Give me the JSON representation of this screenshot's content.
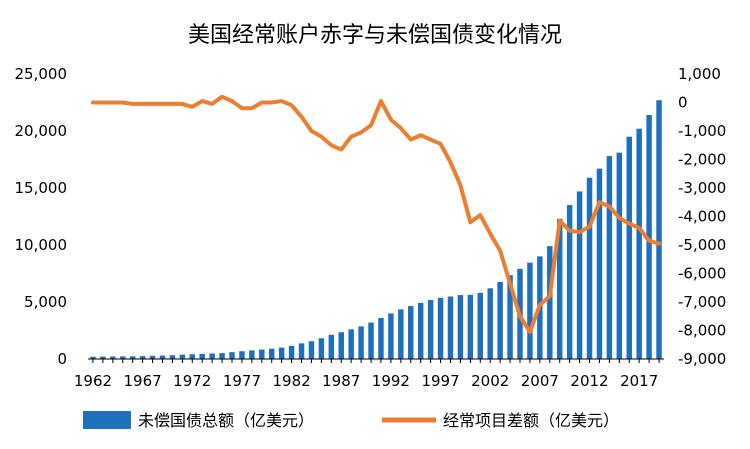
{
  "chart_data": {
    "type": "bar",
    "title": "美国经常账户赤字与未偿国债变化情况",
    "x": [
      1962,
      1963,
      1964,
      1965,
      1966,
      1967,
      1968,
      1969,
      1970,
      1971,
      1972,
      1973,
      1974,
      1975,
      1976,
      1977,
      1978,
      1979,
      1980,
      1981,
      1982,
      1983,
      1984,
      1985,
      1986,
      1987,
      1988,
      1989,
      1990,
      1991,
      1992,
      1993,
      1994,
      1995,
      1996,
      1997,
      1998,
      1999,
      2000,
      2001,
      2002,
      2003,
      2004,
      2005,
      2006,
      2007,
      2008,
      2009,
      2010,
      2011,
      2012,
      2013,
      2014,
      2015,
      2016,
      2017,
      2018,
      2019
    ],
    "x_tick_labels": [
      "1962",
      "1967",
      "1972",
      "1977",
      "1982",
      "1987",
      "1992",
      "1997",
      "2002",
      "2007",
      "2012",
      "2017"
    ],
    "y_left": {
      "ticks": [
        "0",
        "5,000",
        "10,000",
        "15,000",
        "20,000",
        "25,000"
      ],
      "ylim": [
        0,
        25000
      ]
    },
    "y_right": {
      "ticks": [
        "-9,000",
        "-8,000",
        "-7,000",
        "-6,000",
        "-5,000",
        "-4,000",
        "-3,000",
        "-2,000",
        "-1,000",
        "0",
        "1,000"
      ],
      "ylim": [
        -9000,
        1000
      ]
    },
    "legend_position": "bottom",
    "series": [
      {
        "name": "未偿国债总额（亿美元）",
        "type": "bar",
        "axis": "left",
        "color": "#1f6fbf",
        "values": [
          200,
          210,
          220,
          230,
          240,
          250,
          280,
          300,
          330,
          380,
          420,
          450,
          480,
          520,
          600,
          680,
          760,
          830,
          900,
          1000,
          1150,
          1370,
          1560,
          1820,
          2120,
          2350,
          2600,
          2860,
          3200,
          3600,
          4000,
          4350,
          4640,
          4920,
          5180,
          5370,
          5480,
          5610,
          5630,
          5800,
          6200,
          6760,
          7350,
          7910,
          8450,
          9000,
          9900,
          12300,
          13500,
          14700,
          15900,
          16700,
          17800,
          18100,
          19500,
          20200,
          21400,
          22700
        ]
      },
      {
        "name": "经常项目差额（亿美元）",
        "type": "line",
        "axis": "right",
        "color": "#ed7d31",
        "values": [
          0,
          0,
          0,
          0,
          -50,
          -50,
          -50,
          -50,
          -50,
          -50,
          -150,
          50,
          -50,
          200,
          50,
          -200,
          -200,
          0,
          0,
          50,
          -100,
          -500,
          -1000,
          -1200,
          -1500,
          -1650,
          -1200,
          -1050,
          -800,
          50,
          -600,
          -900,
          -1300,
          -1150,
          -1300,
          -1450,
          -2100,
          -2900,
          -4200,
          -3950,
          -4600,
          -5200,
          -6350,
          -7500,
          -8050,
          -7100,
          -6800,
          -4150,
          -4500,
          -4550,
          -4350,
          -3500,
          -3650,
          -4050,
          -4250,
          -4400,
          -4850,
          -4950
        ]
      }
    ]
  }
}
